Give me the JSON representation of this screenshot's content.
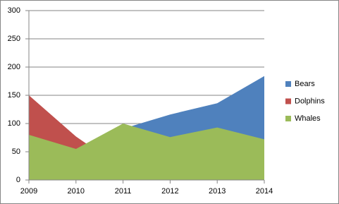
{
  "chart_data": {
    "type": "area",
    "categories": [
      "2009",
      "2010",
      "2011",
      "2012",
      "2013",
      "2014"
    ],
    "series": [
      {
        "name": "Bears",
        "color": "#4f81bd",
        "values": [
          70,
          40,
          91,
          116,
          136,
          184
        ]
      },
      {
        "name": "Dolphins",
        "color": "#c0504d",
        "values": [
          150,
          77,
          20,
          30,
          40,
          50
        ]
      },
      {
        "name": "Whales",
        "color": "#9bbb59",
        "values": [
          80,
          55,
          100,
          76,
          93,
          72
        ]
      }
    ],
    "ylim": [
      0,
      300
    ],
    "yticks": [
      0,
      50,
      100,
      150,
      200,
      250,
      300
    ],
    "grid": true,
    "legend": "right"
  }
}
